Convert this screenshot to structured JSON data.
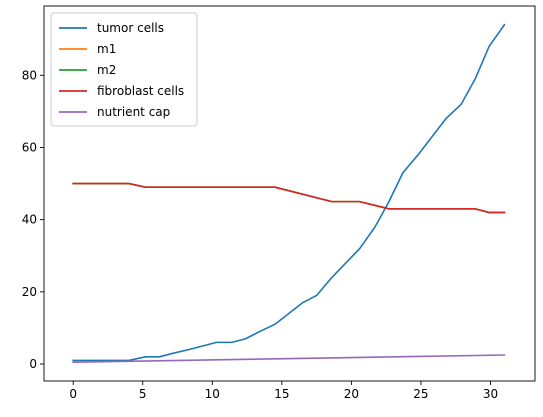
{
  "chart_data": {
    "type": "line",
    "title": "",
    "xlabel": "",
    "ylabel": "",
    "xlim": [
      -2.1,
      33.2
    ],
    "ylim": [
      -4.7,
      99.2
    ],
    "xticks": [
      0,
      5,
      10,
      15,
      20,
      25,
      30
    ],
    "yticks": [
      0,
      20,
      40,
      60,
      80
    ],
    "grid": false,
    "legend_position": "top-left",
    "series": [
      {
        "name": "tumor cells",
        "color": "#1f77b4",
        "x": [
          0,
          1,
          2,
          3,
          4,
          5.2,
          6.2,
          7.2,
          8.3,
          9.3,
          10.3,
          11.4,
          12.4,
          13.4,
          14.5,
          15.5,
          16.5,
          17.5,
          18.6,
          19.6,
          20.6,
          21.7,
          22.7,
          23.7,
          24.8,
          25.8,
          26.8,
          27.9,
          28.9,
          29.9,
          31
        ],
        "y": [
          1,
          1,
          1,
          1,
          1,
          2,
          2,
          3,
          4,
          5,
          6,
          6,
          7,
          9,
          11,
          14,
          17,
          19,
          24,
          28,
          32,
          38,
          45,
          53,
          58,
          63,
          68,
          72,
          79,
          88,
          94
        ]
      },
      {
        "name": "m1",
        "color": "#ff7f0e",
        "x": [
          0,
          4,
          5.2,
          14.5,
          18.6,
          20.6,
          22.7,
          28.9,
          29.9,
          31
        ],
        "y": [
          50,
          50,
          49,
          49,
          45,
          45,
          43,
          43,
          42,
          42
        ]
      },
      {
        "name": "m2",
        "color": "#2ca02c",
        "x": [
          0,
          4,
          5.2,
          14.5,
          18.6,
          20.6,
          22.7,
          28.9,
          29.9,
          31
        ],
        "y": [
          50,
          50,
          49,
          49,
          45,
          45,
          43,
          43,
          42,
          42
        ]
      },
      {
        "name": "fibroblast cells",
        "color": "#d62728",
        "x": [
          0,
          4,
          5.2,
          14.5,
          18.6,
          20.6,
          22.7,
          28.9,
          29.9,
          31
        ],
        "y": [
          50,
          50,
          49,
          49,
          45,
          45,
          43,
          43,
          42,
          42
        ]
      },
      {
        "name": "nutrient cap",
        "color": "#9467bd",
        "x": [
          0,
          31
        ],
        "y": [
          0.5,
          2.5
        ]
      }
    ]
  }
}
